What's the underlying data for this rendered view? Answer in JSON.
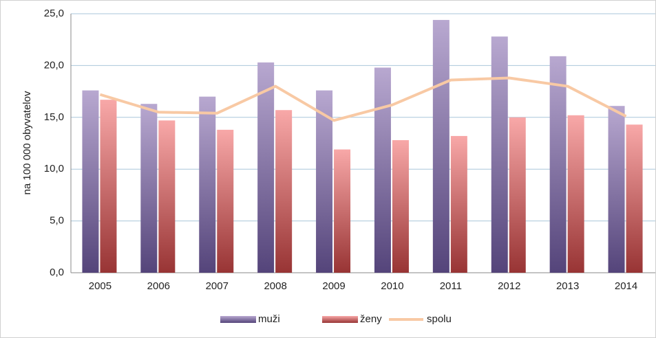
{
  "chart_data": {
    "type": "bar_line",
    "y_axis_label": "na 100 000 obyvatelov",
    "categories": [
      "2005",
      "2006",
      "2007",
      "2008",
      "2009",
      "2010",
      "2011",
      "2012",
      "2013",
      "2014"
    ],
    "series": [
      {
        "name": "muži",
        "type": "bar",
        "color": "#8a78aa",
        "values": [
          17.6,
          16.3,
          17.0,
          20.3,
          17.6,
          19.8,
          24.4,
          22.8,
          20.9,
          16.1
        ]
      },
      {
        "name": "ženy",
        "type": "bar",
        "color": "#d86a6a",
        "values": [
          16.7,
          14.7,
          13.8,
          15.7,
          11.9,
          12.8,
          13.2,
          15.0,
          15.2,
          14.3
        ]
      },
      {
        "name": "spolu",
        "type": "line",
        "color": "#f8c9a4",
        "values": [
          17.2,
          15.5,
          15.4,
          18.0,
          14.7,
          16.2,
          18.6,
          18.8,
          18.0,
          15.1
        ]
      }
    ],
    "ylim": [
      0,
      25
    ],
    "yticks": [
      {
        "value": 0,
        "label": "0,0"
      },
      {
        "value": 5,
        "label": "5,0"
      },
      {
        "value": 10,
        "label": "10,0"
      },
      {
        "value": 15,
        "label": "15,0"
      },
      {
        "value": 20,
        "label": "20,0"
      },
      {
        "value": 25,
        "label": "25,0"
      }
    ],
    "grid": true,
    "legend": "bottom"
  }
}
